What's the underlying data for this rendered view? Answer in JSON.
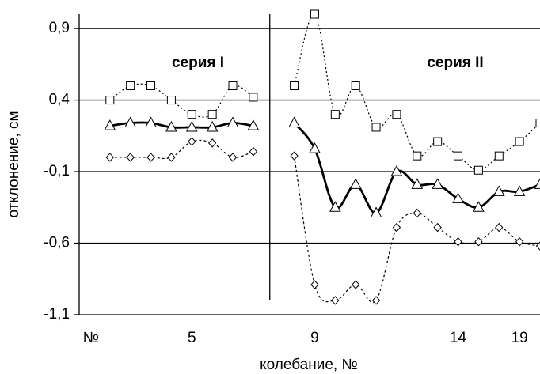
{
  "chart_data": {
    "type": "line",
    "y_label": "отклонение, см",
    "x_label": "колебание, №",
    "annotations": [
      "серия I",
      "серия II"
    ],
    "categories": [
      "№",
      null,
      null,
      null,
      null,
      "5",
      null,
      null,
      null,
      null,
      null,
      "9",
      null,
      null,
      null,
      null,
      null,
      null,
      "14",
      null,
      null,
      "19",
      null
    ],
    "series": [
      {
        "color": "#000000",
        "marker": "square",
        "line": "dotted",
        "values": [
          null,
          0.4,
          0.5,
          0.5,
          0.4,
          0.3,
          0.3,
          0.5,
          0.42,
          null,
          0.5,
          1.0,
          0.3,
          0.5,
          0.21,
          0.3,
          0.01,
          0.11,
          0.01,
          -0.09,
          0.01,
          0.11,
          0.24
        ]
      },
      {
        "color": "#000000",
        "marker": "triangle",
        "line": "solid",
        "values": [
          null,
          0.22,
          0.24,
          0.24,
          0.21,
          0.21,
          0.21,
          0.24,
          0.22,
          null,
          0.24,
          0.06,
          -0.35,
          -0.19,
          -0.39,
          -0.1,
          -0.19,
          -0.19,
          -0.29,
          -0.35,
          -0.24,
          -0.24,
          -0.19
        ]
      },
      {
        "color": "#000000",
        "marker": "diamond",
        "line": "dashed",
        "values": [
          null,
          0.0,
          0.0,
          0.0,
          0.0,
          0.11,
          0.1,
          0.0,
          0.04,
          null,
          0.01,
          -0.89,
          -1.0,
          -0.89,
          -1.0,
          -0.49,
          -0.39,
          -0.49,
          -0.59,
          -0.59,
          -0.49,
          -0.59,
          -0.62
        ]
      }
    ],
    "ylim": [
      -1.1,
      1.0
    ],
    "yticks": [
      {
        "value": -1.1,
        "label": "-1,1"
      },
      {
        "value": -0.6,
        "label": "-0,6"
      },
      {
        "value": -0.1,
        "label": "-0,1"
      },
      {
        "value": 0.4,
        "label": "0,4"
      },
      {
        "value": 0.9,
        "label": "0,9"
      }
    ],
    "grid": true
  }
}
